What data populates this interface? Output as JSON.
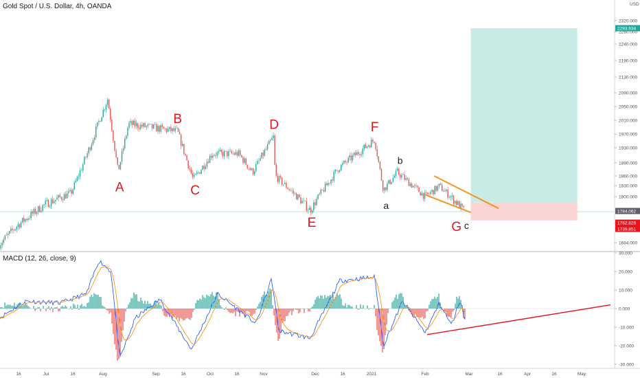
{
  "header": {
    "title": "Gold Spot / U.S. Dollar, 4h, OANDA"
  },
  "currency_label": "USD",
  "chart_data": [
    {
      "type": "line",
      "title": "Gold Spot / U.S. Dollar, 4h, OANDA",
      "y_axis_side": "right",
      "y_ticks": [
        "2320.000",
        "2280.000",
        "2240.000",
        "2190.000",
        "2130.000",
        "2090.000",
        "2050.000",
        "2010.000",
        "1970.000",
        "1930.000",
        "1890.000",
        "1860.000",
        "1830.000",
        "1800.000",
        "1772.000",
        "1684.000"
      ],
      "x_ticks": [
        "16",
        "Jul",
        "16",
        "Aug",
        "Sep",
        "16",
        "Oct",
        "16",
        "Nov",
        "Dec",
        "16",
        "2021",
        "Feb",
        "Mar",
        "16",
        "Apr",
        "16",
        "May"
      ],
      "price_path": [
        {
          "x": "2020-06-05",
          "y": 1680
        },
        {
          "x": "2020-06-16",
          "y": 1730
        },
        {
          "x": "2020-07-01",
          "y": 1780
        },
        {
          "x": "2020-07-16",
          "y": 1810
        },
        {
          "x": "2020-07-27",
          "y": 1940
        },
        {
          "x": "2020-08-06",
          "y": 2072
        },
        {
          "x": "2020-08-12",
          "y": 1870
        },
        {
          "x": "2020-08-18",
          "y": 2000
        },
        {
          "x": "2020-09-01",
          "y": 1990
        },
        {
          "x": "2020-09-15",
          "y": 1980
        },
        {
          "x": "2020-09-24",
          "y": 1850
        },
        {
          "x": "2020-10-05",
          "y": 1920
        },
        {
          "x": "2020-10-20",
          "y": 1920
        },
        {
          "x": "2020-10-28",
          "y": 1870
        },
        {
          "x": "2020-11-09",
          "y": 1965
        },
        {
          "x": "2020-11-10",
          "y": 1860
        },
        {
          "x": "2020-11-30",
          "y": 1765
        },
        {
          "x": "2020-12-16",
          "y": 1880
        },
        {
          "x": "2021-01-06",
          "y": 1958
        },
        {
          "x": "2021-01-11",
          "y": 1820
        },
        {
          "x": "2021-01-19",
          "y": 1870
        },
        {
          "x": "2021-02-04",
          "y": 1800
        },
        {
          "x": "2021-02-12",
          "y": 1830
        },
        {
          "x": "2021-02-26",
          "y": 1765
        }
      ],
      "wave_labels": [
        {
          "text": "A",
          "x": "2020-08-12",
          "y": 1870
        },
        {
          "text": "B",
          "x": "2020-09-15",
          "y": 1980
        },
        {
          "text": "C",
          "x": "2020-09-24",
          "y": 1850
        },
        {
          "text": "D",
          "x": "2020-11-09",
          "y": 1965
        },
        {
          "text": "E",
          "x": "2020-11-30",
          "y": 1765
        },
        {
          "text": "F",
          "x": "2021-01-06",
          "y": 1958
        },
        {
          "text": "a",
          "x": "2021-01-11",
          "y": 1820
        },
        {
          "text": "b",
          "x": "2021-01-19",
          "y": 1870
        },
        {
          "text": "G",
          "x": "2021-02-26",
          "y": 1765
        },
        {
          "text": "c",
          "x": "2021-02-27",
          "y": 1760
        }
      ],
      "wedge_lines": [
        [
          {
            "x": "2021-02-09",
            "y": 1860
          },
          {
            "x": "2021-03-18",
            "y": 1770
          }
        ],
        [
          {
            "x": "2021-02-04",
            "y": 1805
          },
          {
            "x": "2021-03-02",
            "y": 1760
          }
        ]
      ],
      "position": {
        "entry": 1785.0,
        "target": 2293.934,
        "stop": 1739.851,
        "start": "2021-03-02",
        "end": "2021-05-02"
      },
      "price_badges": [
        {
          "text": "2293.934",
          "color": "#26a69a"
        },
        {
          "text": "1784.062",
          "color": "#5d6068"
        },
        {
          "text": "1762.826",
          "color": "#e8131b"
        },
        {
          "text": "1739.851",
          "color": "#e8131b"
        }
      ],
      "colors": {
        "candles_up": "#26a69a",
        "candles_down": "#ef5350",
        "wedge": "#f7931e",
        "target_zone": "#c8ebe6",
        "stop_zone": "#fbd4d4",
        "wave_labels": "#e8131b"
      }
    },
    {
      "type": "bar",
      "title": "MACD (12, 26, close, 9)",
      "y_ticks": [
        "30.000",
        "20.000",
        "10.000",
        "0.000",
        "-10.000",
        "-20.000",
        "-30.000"
      ],
      "ylim": [
        -30,
        30
      ],
      "macd_path": [
        {
          "x": "2020-06-05",
          "y": -5
        },
        {
          "x": "2020-06-20",
          "y": 4
        },
        {
          "x": "2020-07-10",
          "y": 3
        },
        {
          "x": "2020-07-25",
          "y": 8
        },
        {
          "x": "2020-08-01",
          "y": 26
        },
        {
          "x": "2020-08-08",
          "y": 20
        },
        {
          "x": "2020-08-13",
          "y": -27
        },
        {
          "x": "2020-08-22",
          "y": -5
        },
        {
          "x": "2020-09-05",
          "y": 5
        },
        {
          "x": "2020-09-23",
          "y": -22
        },
        {
          "x": "2020-10-08",
          "y": 8
        },
        {
          "x": "2020-10-30",
          "y": -8
        },
        {
          "x": "2020-11-08",
          "y": 16
        },
        {
          "x": "2020-11-12",
          "y": -12
        },
        {
          "x": "2020-11-30",
          "y": -16
        },
        {
          "x": "2020-12-17",
          "y": 15
        },
        {
          "x": "2021-01-06",
          "y": 17
        },
        {
          "x": "2021-01-11",
          "y": -20
        },
        {
          "x": "2021-01-22",
          "y": 4
        },
        {
          "x": "2021-02-04",
          "y": -13
        },
        {
          "x": "2021-02-12",
          "y": 3
        },
        {
          "x": "2021-02-19",
          "y": -9
        },
        {
          "x": "2021-02-24",
          "y": 5
        },
        {
          "x": "2021-02-27",
          "y": -8
        }
      ],
      "divergence_line": [
        {
          "x": "2021-02-05",
          "y": -14
        },
        {
          "x": "2021-05-21",
          "y": 2
        }
      ],
      "colors": {
        "macd": "#2962ff",
        "signal": "#f7931e",
        "histogram_up": "#26a69a",
        "histogram_down": "#ef5350",
        "divergence": "#e8131b"
      }
    }
  ]
}
